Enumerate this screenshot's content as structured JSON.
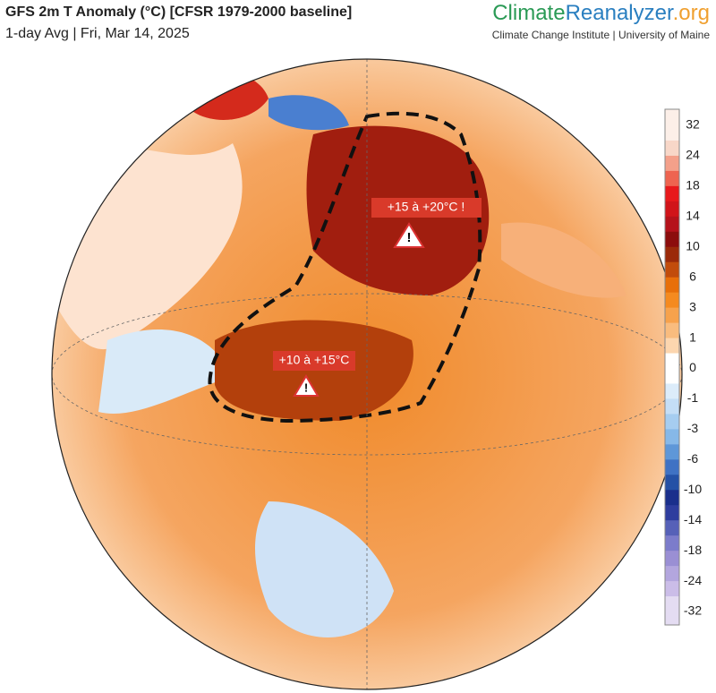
{
  "header": {
    "title": "GFS 2m T Anomaly (°C) [CFSR 1979-2000 baseline]",
    "subtitle": "1-day Avg | Fri, Mar 14, 2025",
    "brand_climate": "Climate",
    "brand_reanalyzer": "Reanalyzer",
    "brand_org": ".org",
    "institute": "Climate Change Institute | University of Maine"
  },
  "annotations": [
    {
      "label": "+15 à +20°C !"
    },
    {
      "label": "+10 à +15°C"
    }
  ],
  "colorbar": {
    "labels": [
      32,
      24,
      18,
      14,
      10,
      6,
      3,
      1,
      0,
      -1,
      -3,
      -6,
      -10,
      -14,
      -18,
      -24,
      -32
    ],
    "colors": [
      "#fcefe8",
      "#f8d7c8",
      "#f4a08a",
      "#ee6450",
      "#e8191c",
      "#d1141a",
      "#b5121b",
      "#8c0d0d",
      "#9b2a0a",
      "#c24c0c",
      "#e86f0a",
      "#f58a1f",
      "#f7a24c",
      "#f9bc7e",
      "#fcd6af",
      "#ffffff",
      "#ffffff",
      "#dcecfa",
      "#c4def6",
      "#a6cdf0",
      "#86b8e8",
      "#5e97d8",
      "#3f72c4",
      "#2451a6",
      "#1a2f8c",
      "#2e3d9e",
      "#5661b8",
      "#7c7ccb",
      "#9a8fd4",
      "#b3a6de",
      "#cbbde8",
      "#e4dcf2"
    ]
  }
}
